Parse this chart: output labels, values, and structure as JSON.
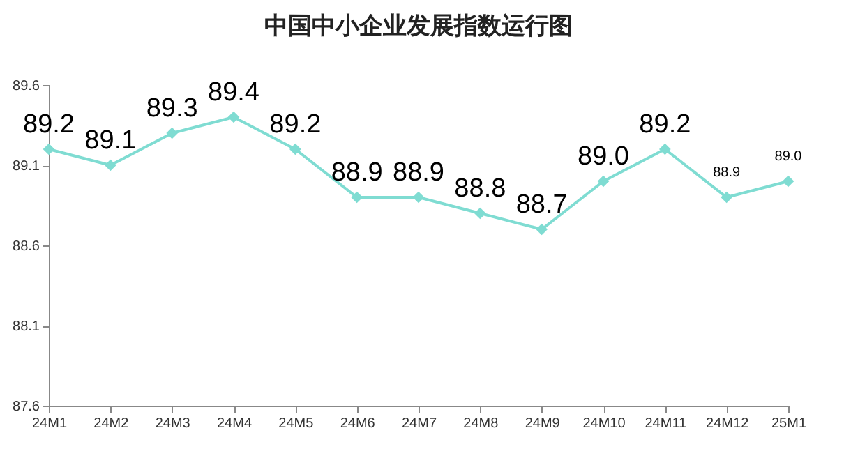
{
  "chart_data": {
    "type": "line",
    "title": "中国中小企业发展指数运行图",
    "categories": [
      "24M1",
      "24M2",
      "24M3",
      "24M4",
      "24M5",
      "24M6",
      "24M7",
      "24M8",
      "24M9",
      "24M10",
      "24M11",
      "24M12",
      "25M1"
    ],
    "series": [
      {
        "color": "#7fdcd2",
        "values": [
          89.2,
          89.1,
          89.3,
          89.4,
          89.2,
          88.9,
          88.9,
          88.8,
          88.7,
          89.0,
          89.2,
          88.9,
          89.0
        ]
      }
    ],
    "ylim": [
      87.6,
      89.6
    ],
    "yticks": [
      87.6,
      88.1,
      88.6,
      89.1,
      89.6
    ],
    "value_labels": [
      "89.2",
      "89.1",
      "89.3",
      "89.4",
      "89.2",
      "88.9",
      "88.9",
      "88.8",
      "88.7",
      "89.0",
      "89.2",
      "88.9",
      "89.0"
    ],
    "marker": "diamond",
    "grid": false,
    "legend": false
  }
}
